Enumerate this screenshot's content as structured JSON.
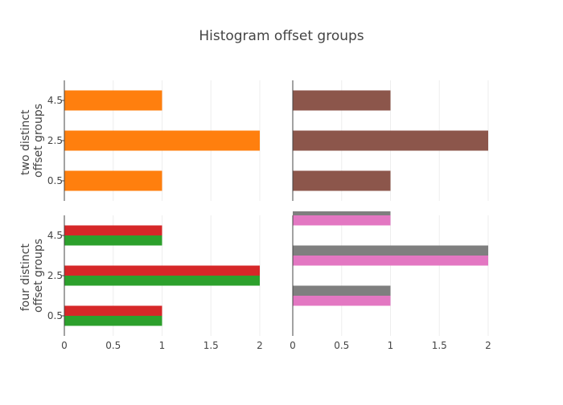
{
  "chart_data": {
    "title": "Histogram offset groups",
    "type": "bar",
    "orientation": "horizontal",
    "grid": true,
    "legend": "none",
    "xlim": [
      0,
      2
    ],
    "x_ticks": [
      "0",
      "0.5",
      "1",
      "1.5",
      "2"
    ],
    "y_ticks": [
      "0.5",
      "2.5",
      "4.5"
    ],
    "row_labels": [
      [
        "two distinct",
        "offset groups"
      ],
      [
        "four distinct",
        "offset groups"
      ]
    ],
    "panels": [
      {
        "row": 0,
        "col": 0,
        "ylim": [
          -0.5,
          5.5
        ],
        "show_y_ticks": true,
        "show_x_ticks": false,
        "series": [
          {
            "color": "#1f77b4",
            "bins": [
              {
                "y0": 0,
                "y1": 1,
                "value": 1
              },
              {
                "y0": 2,
                "y1": 3,
                "value": 2
              },
              {
                "y0": 4,
                "y1": 5,
                "value": 1
              }
            ]
          },
          {
            "color": "#ff7f0e",
            "bins": [
              {
                "y0": 0,
                "y1": 1,
                "value": 1
              },
              {
                "y0": 2,
                "y1": 3,
                "value": 2
              },
              {
                "y0": 4,
                "y1": 5,
                "value": 1
              }
            ]
          }
        ]
      },
      {
        "row": 0,
        "col": 1,
        "ylim": [
          -0.5,
          5.5
        ],
        "show_y_ticks": false,
        "show_x_ticks": false,
        "series": [
          {
            "color": "#9467bd",
            "bins": [
              {
                "y0": 0,
                "y1": 1,
                "value": 1
              },
              {
                "y0": 2,
                "y1": 3,
                "value": 2
              },
              {
                "y0": 4,
                "y1": 5,
                "value": 1
              }
            ]
          },
          {
            "color": "#8c564b",
            "bins": [
              {
                "y0": 0,
                "y1": 1,
                "value": 1
              },
              {
                "y0": 2,
                "y1": 3,
                "value": 2
              },
              {
                "y0": 4,
                "y1": 5,
                "value": 1
              }
            ]
          }
        ]
      },
      {
        "row": 1,
        "col": 0,
        "ylim": [
          -0.5,
          5.5
        ],
        "show_y_ticks": true,
        "show_x_ticks": true,
        "series": [
          {
            "color": "#2ca02c",
            "bins": [
              {
                "y0": 0,
                "y1": 0.5,
                "value": 1
              },
              {
                "y0": 2,
                "y1": 2.5,
                "value": 2
              },
              {
                "y0": 4,
                "y1": 4.5,
                "value": 1
              }
            ]
          },
          {
            "color": "#d62728",
            "bins": [
              {
                "y0": 0.5,
                "y1": 1,
                "value": 1
              },
              {
                "y0": 2.5,
                "y1": 3,
                "value": 2
              },
              {
                "y0": 4.5,
                "y1": 5,
                "value": 1
              }
            ]
          }
        ]
      },
      {
        "row": 1,
        "col": 1,
        "ylim": [
          -0.5,
          5.5
        ],
        "show_y_ticks": false,
        "show_x_ticks": true,
        "series": [
          {
            "color": "#e377c2",
            "bins": [
              {
                "y0": 1,
                "y1": 1.5,
                "value": 1
              },
              {
                "y0": 3,
                "y1": 3.5,
                "value": 2
              },
              {
                "y0": 5,
                "y1": 5.5,
                "value": 1
              }
            ]
          },
          {
            "color": "#7f7f7f",
            "bins": [
              {
                "y0": 1.5,
                "y1": 2,
                "value": 1
              },
              {
                "y0": 3.5,
                "y1": 4,
                "value": 2
              },
              {
                "y0": 5.5,
                "y1": 6,
                "value": 1
              }
            ]
          }
        ]
      }
    ]
  }
}
